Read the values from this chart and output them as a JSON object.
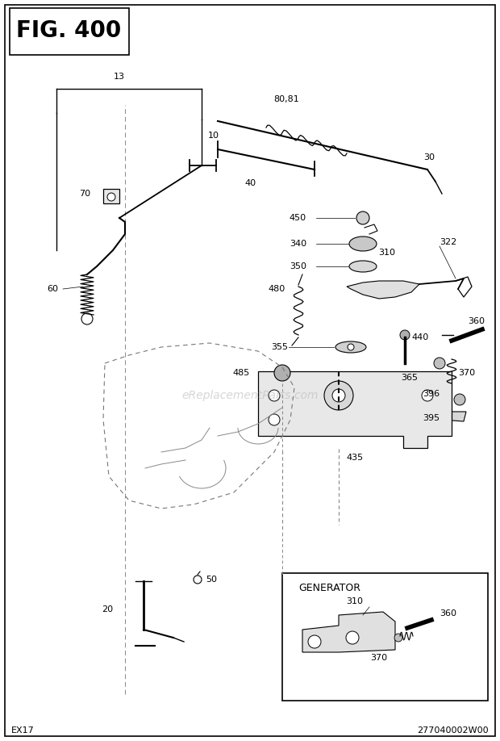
{
  "title": "FIG. 400",
  "bottom_left": "EX17",
  "bottom_right": "277040002W00",
  "bg_color": "#ffffff",
  "fig_width": 6.2,
  "fig_height": 9.18,
  "dpi": 100
}
